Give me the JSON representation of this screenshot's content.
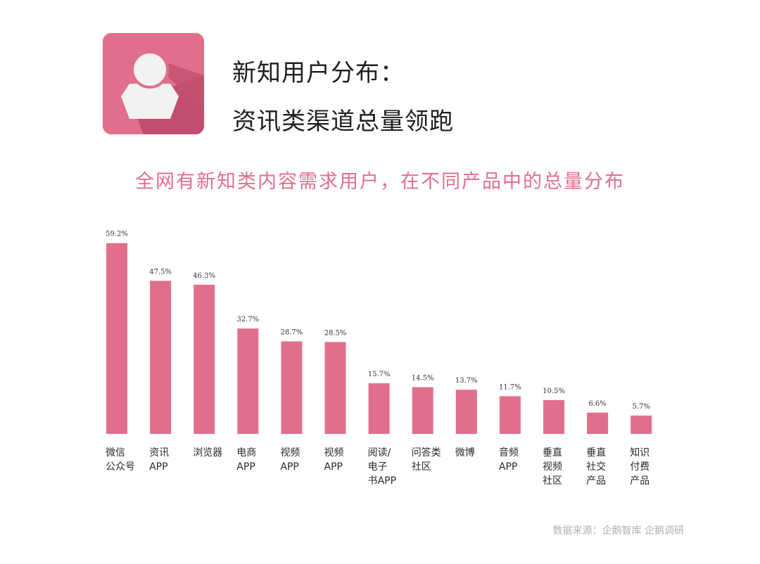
{
  "header": {
    "title_line1": "新知用户分布：",
    "title_line2": "资讯类渠道总量领跑"
  },
  "subtitle": "全网有新知类内容需求用户，在不同产品中的总量分布",
  "source": "数据来源：企鹅智库 企鹅调研",
  "colors": {
    "accent": "#e16f8c",
    "bar": "#e16f8c"
  },
  "icon": "user-profile-icon",
  "chart_data": {
    "type": "bar",
    "categories": [
      [
        "微信",
        "公众号"
      ],
      [
        "资讯",
        "APP"
      ],
      [
        "浏览器"
      ],
      [
        "电商",
        "APP"
      ],
      [
        "视频",
        "APP"
      ],
      [
        "视频",
        "APP"
      ],
      [
        "阅读/",
        "电子",
        "书APP"
      ],
      [
        "问答类",
        "社区"
      ],
      [
        "微博"
      ],
      [
        "音频",
        "APP"
      ],
      [
        "垂直",
        "视频",
        "社区"
      ],
      [
        "垂直",
        "社交",
        "产品"
      ],
      [
        "知识",
        "付费",
        "产品"
      ]
    ],
    "values": [
      59.2,
      47.5,
      46.3,
      32.7,
      28.7,
      28.5,
      15.7,
      14.5,
      13.7,
      11.7,
      10.5,
      6.6,
      5.7
    ],
    "value_labels": [
      "59.2%",
      "47.5%",
      "46.3%",
      "32.7%",
      "28.7%",
      "28.5%",
      "15.7%",
      "14.5%",
      "13.7%",
      "11.7%",
      "10.5%",
      "6.6%",
      "5.7%"
    ],
    "unit": "%",
    "ylim": [
      0,
      60
    ],
    "grid": false,
    "legend": "none"
  }
}
